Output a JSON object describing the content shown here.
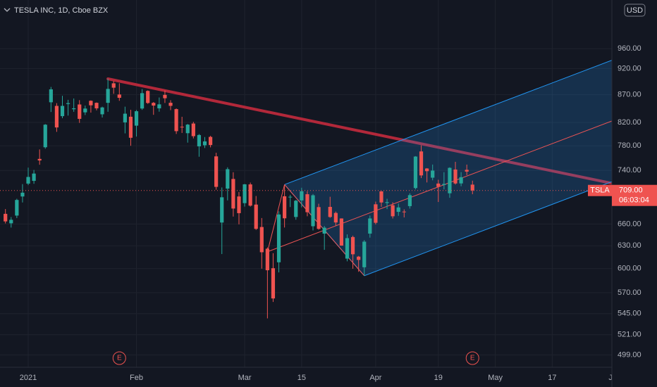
{
  "chart_data": {
    "type": "candlestick",
    "title": "TESLA INC, 1D, Cboe BZX",
    "currency": "USD",
    "symbol": "TSLA",
    "log_scale": true,
    "grid": true,
    "up_color": "#26a69a",
    "down_color": "#ef5350",
    "categories": [
      "2020-12-28",
      "2020-12-29",
      "2020-12-30",
      "2020-12-31",
      "2021-01-04",
      "2021-01-05",
      "2021-01-06",
      "2021-01-07",
      "2021-01-08",
      "2021-01-11",
      "2021-01-12",
      "2021-01-13",
      "2021-01-14",
      "2021-01-15",
      "2021-01-19",
      "2021-01-20",
      "2021-01-21",
      "2021-01-22",
      "2021-01-25",
      "2021-01-26",
      "2021-01-27",
      "2021-01-28",
      "2021-01-29",
      "2021-02-01",
      "2021-02-02",
      "2021-02-03",
      "2021-02-04",
      "2021-02-05",
      "2021-02-08",
      "2021-02-09",
      "2021-02-10",
      "2021-02-11",
      "2021-02-12",
      "2021-02-16",
      "2021-02-17",
      "2021-02-18",
      "2021-02-19",
      "2021-02-22",
      "2021-02-23",
      "2021-02-24",
      "2021-02-25",
      "2021-02-26",
      "2021-03-01",
      "2021-03-02",
      "2021-03-03",
      "2021-03-04",
      "2021-03-05",
      "2021-03-08",
      "2021-03-09",
      "2021-03-10",
      "2021-03-11",
      "2021-03-12",
      "2021-03-15",
      "2021-03-16",
      "2021-03-17",
      "2021-03-18",
      "2021-03-19",
      "2021-03-22",
      "2021-03-23",
      "2021-03-24",
      "2021-03-25",
      "2021-03-26",
      "2021-03-29",
      "2021-03-30",
      "2021-03-31",
      "2021-04-01",
      "2021-04-05",
      "2021-04-06",
      "2021-04-07",
      "2021-04-08",
      "2021-04-09",
      "2021-04-12",
      "2021-04-13",
      "2021-04-14",
      "2021-04-15",
      "2021-04-16",
      "2021-04-19",
      "2021-04-20",
      "2021-04-21",
      "2021-04-22",
      "2021-04-23",
      "2021-04-26",
      "2021-04-27"
    ],
    "open": [
      674.5,
      661,
      672,
      699.99,
      719.5,
      723.7,
      758.5,
      777.6,
      856,
      849.4,
      831,
      852.8,
      843.4,
      852,
      837.8,
      858.7,
      855,
      834.3,
      855,
      891.4,
      870.35,
      820,
      830,
      814.3,
      844.7,
      877,
      855,
      845,
      869.7,
      855.1,
      843.6,
      812.4,
      801.3,
      818,
      779.1,
      780.9,
      795,
      762.6,
      662.1,
      711.85,
      726.7,
      700,
      690.1,
      718.3,
      687.99,
      655.8,
      626.1,
      600.55,
      608.2,
      700.3,
      699.4,
      670,
      694.1,
      703.35,
      656.9,
      684.3,
      646.6,
      684.6,
      675.8,
      667.9,
      613,
      641.9,
      615.6,
      601.75,
      646.6,
      688.4,
      707.7,
      690.3,
      687,
      677.4,
      677.8,
      685.7,
      712.7,
      770.7,
      743.1,
      728.65,
      719.6,
      717.4,
      704.8,
      741.5,
      719.8,
      741,
      717.96
    ],
    "high": [
      681.4,
      669.9,
      696.6,
      718.7,
      744.5,
      740.8,
      774,
      816.99,
      884.5,
      854.4,
      868,
      860.5,
      863,
      859.9,
      850,
      859.5,
      855.7,
      848,
      900.4,
      895.9,
      891.5,
      848,
      842.4,
      842,
      880.5,
      878.1,
      856.5,
      864.8,
      877.8,
      859.8,
      844.8,
      829.9,
      817.3,
      821,
      799.8,
      794.7,
      796.8,
      768.5,
      713.6,
      745,
      737.2,
      706.7,
      719,
      721.1,
      700.7,
      668.5,
      627.8,
      620.1,
      678.1,
      717.85,
      702.5,
      694.9,
      713.2,
      707.9,
      703.7,
      689.2,
      657.2,
      699.6,
      677.8,
      668,
      645.5,
      643.8,
      616.5,
      637.7,
      672,
      692.4,
      708.2,
      696.55,
      691.4,
      689.55,
      680.97,
      704.8,
      763,
      780.8,
      743.7,
      749.4,
      725.4,
      737.25,
      745,
      753.8,
      737.4,
      749.3,
      724
    ],
    "low": [
      660.8,
      655,
      668.4,
      691.1,
      717.2,
      719.2,
      749.1,
      775.2,
      838.4,
      803.6,
      827.3,
      832,
      838.75,
      819.1,
      833,
      837.3,
      841.4,
      828.6,
      838.8,
      871.6,
      858.7,
      801,
      780.1,
      795.6,
      842.2,
      853.1,
      833.4,
      838.97,
      854.75,
      841.75,
      800.02,
      801.7,
      785.3,
      792.4,
      762,
      776.3,
      777.4,
      710.2,
      619,
      694.2,
      670.6,
      659.5,
      685.05,
      685,
      651.7,
      600,
      539.5,
      558.8,
      595.2,
      655.1,
      684.4,
      666.1,
      684,
      671,
      651,
      652,
      624.6,
      668.75,
      657.5,
      630.1,
      609.5,
      599.9,
      596,
      591,
      641.1,
      659.4,
      684.7,
      681.4,
      667.8,
      671.65,
      669.4,
      682.1,
      710.7,
      728.03,
      721.3,
      724.6,
      691.8,
      710.7,
      698,
      718,
      715.5,
      732.6,
      703.35
    ],
    "close": [
      663.7,
      666,
      694.8,
      705.7,
      729.8,
      735.1,
      756,
      816,
      880,
      811.2,
      849.4,
      854.4,
      845,
      826.2,
      844.6,
      850.5,
      845,
      846.6,
      880.8,
      883.1,
      864.2,
      835.4,
      793.5,
      839.8,
      872.8,
      854.7,
      850,
      852.2,
      863.4,
      849.5,
      804.8,
      811.7,
      816.1,
      796.2,
      798.2,
      787.4,
      781.3,
      714.5,
      698.8,
      742,
      682.2,
      675.5,
      718.4,
      686.4,
      653.2,
      621.4,
      597.95,
      563,
      673.6,
      668.1,
      699.6,
      693.7,
      707.9,
      676.9,
      701.8,
      653.2,
      654.9,
      670,
      662.2,
      630.3,
      640.4,
      618.7,
      611.3,
      635.6,
      667.9,
      661.75,
      691.05,
      691.6,
      671,
      683.8,
      677,
      702,
      762.3,
      732.2,
      738.85,
      739.8,
      714.6,
      719,
      744.1,
      719.7,
      729.4,
      738.2,
      709
    ],
    "last_price_label": "709.00",
    "countdown": "06:03:04",
    "ylim": [
      486,
      1065
    ],
    "yticks": [
      {
        "value": 499,
        "label": "499.00"
      },
      {
        "value": 521,
        "label": "521.00"
      },
      {
        "value": 545,
        "label": "545.00"
      },
      {
        "value": 570,
        "label": "570.00"
      },
      {
        "value": 600,
        "label": "600.00"
      },
      {
        "value": 630,
        "label": "630.00"
      },
      {
        "value": 660,
        "label": "660.00"
      },
      {
        "value": 740,
        "label": "740.00"
      },
      {
        "value": 780,
        "label": "780.00"
      },
      {
        "value": 820,
        "label": "820.00"
      },
      {
        "value": 870,
        "label": "870.00"
      },
      {
        "value": 920,
        "label": "920.00"
      },
      {
        "value": 960,
        "label": "960.00"
      }
    ],
    "xticks": [
      {
        "value": "2021-01-04",
        "label": "2021"
      },
      {
        "value": "2021-02-01",
        "label": "Feb"
      },
      {
        "value": "2021-03-01",
        "label": "Mar"
      },
      {
        "value": "2021-03-15",
        "label": "15"
      },
      {
        "value": "2021-04-01",
        "label": "Apr"
      },
      {
        "value": "2021-04-19",
        "label": "19"
      },
      {
        "value": "2021-05-03",
        "label": "May"
      },
      {
        "value": "2021-05-17",
        "label": "17"
      },
      {
        "value": "2021-06-01",
        "label": "Jun"
      }
    ],
    "events": [
      {
        "date": "2021-01-27",
        "label": "E"
      },
      {
        "date": "2021-04-27",
        "label": "E"
      }
    ],
    "drawings": {
      "trend_line": {
        "color": "#b2283a",
        "points": [
          {
            "date": "2021-01-25",
            "price": 900
          },
          {
            "date": "2021-06-01",
            "price": 719
          }
        ]
      },
      "pitchfork": {
        "color": "#2196f3",
        "median_color": "#f05454",
        "points": [
          {
            "date": "2021-03-05",
            "price": 622
          },
          {
            "date": "2021-03-10",
            "price": 718
          },
          {
            "date": "2021-03-30",
            "price": 591
          }
        ]
      }
    }
  }
}
